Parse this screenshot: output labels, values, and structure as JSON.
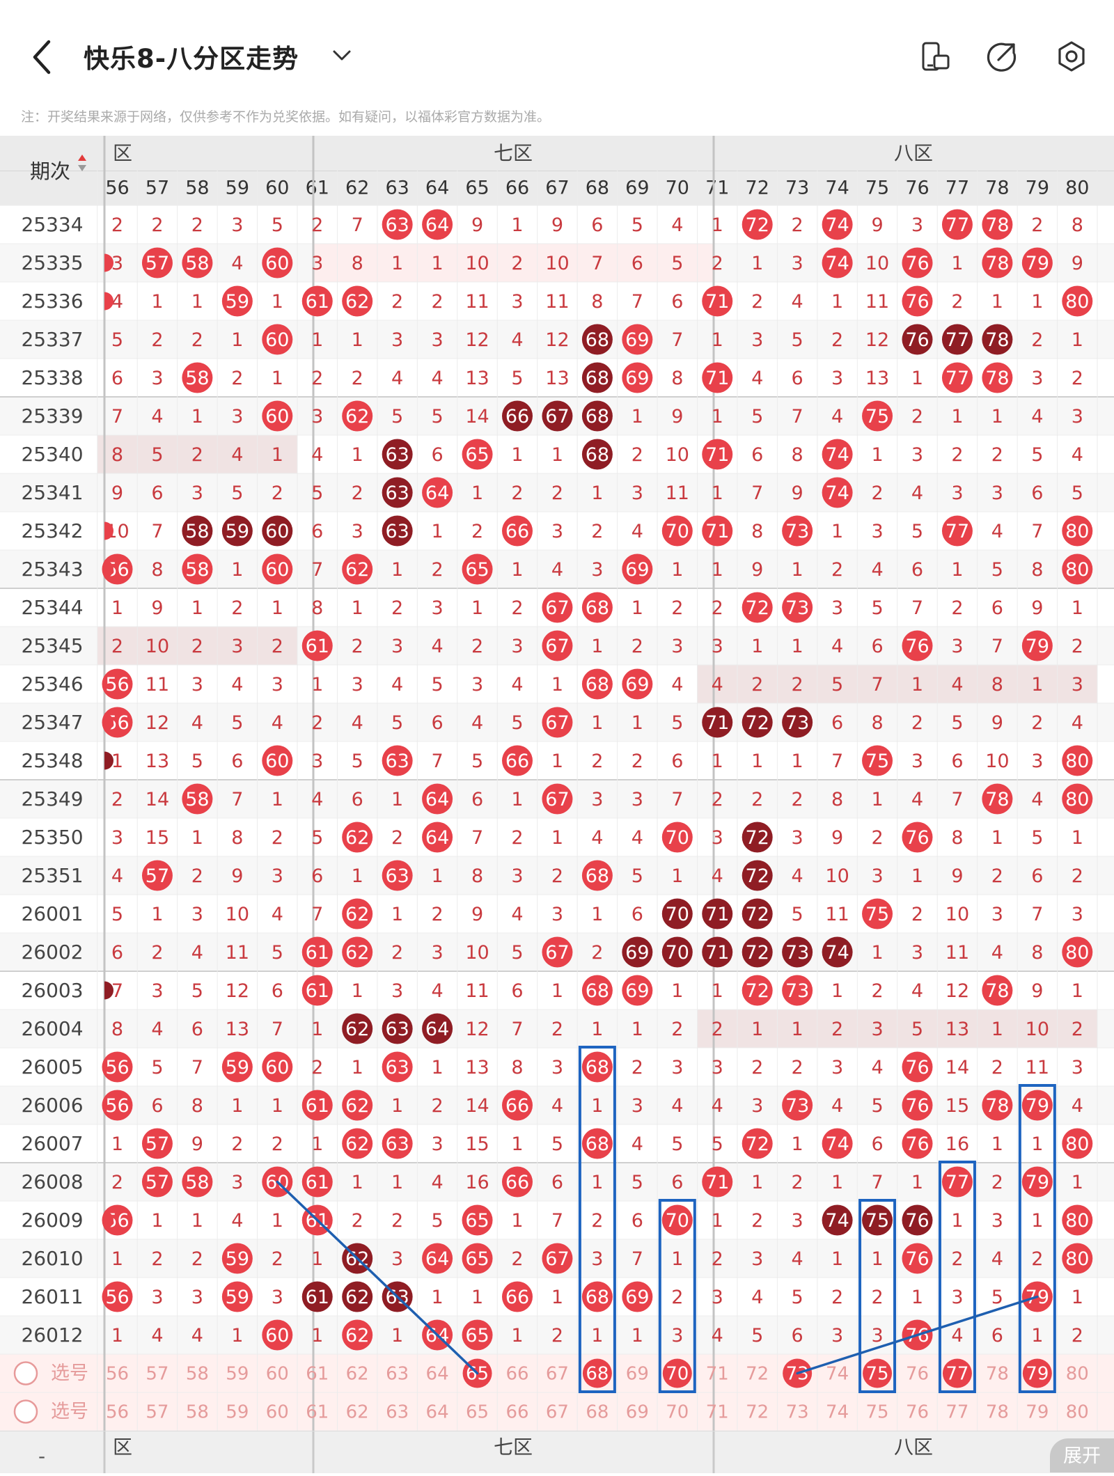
{
  "header": {
    "title": "快乐8-八分区走势",
    "icons": [
      "back-arrow-icon",
      "chevron-down-icon",
      "phone-rotate-icon",
      "share-icon",
      "settings-icon"
    ]
  },
  "notice": "注：开奖结果来源于网络，仅供参考不作为兑奖依据。如有疑问，以福体彩官方数据为准。",
  "table": {
    "period_header": "期次",
    "zones": [
      {
        "label": "六区",
        "visible_label": "区"
      },
      {
        "label": "七区"
      },
      {
        "label": "八区"
      }
    ],
    "columns": [
      "56",
      "57",
      "58",
      "59",
      "60",
      "61",
      "62",
      "63",
      "64",
      "65",
      "66",
      "67",
      "68",
      "69",
      "70",
      "71",
      "72",
      "73",
      "74",
      "75",
      "76",
      "77",
      "78",
      "79",
      "80"
    ],
    "rows": [
      {
        "period": "25334",
        "cells": [
          2,
          2,
          2,
          3,
          5,
          2,
          7,
          63,
          64,
          9,
          1,
          9,
          6,
          5,
          4,
          1,
          72,
          2,
          74,
          9,
          3,
          77,
          78,
          2,
          8
        ]
      },
      {
        "period": "25335",
        "cells": [
          3,
          57,
          58,
          4,
          60,
          3,
          8,
          1,
          1,
          10,
          2,
          10,
          7,
          6,
          5,
          2,
          1,
          3,
          74,
          10,
          76,
          1,
          78,
          79,
          9
        ]
      },
      {
        "period": "25336",
        "cells": [
          4,
          1,
          1,
          59,
          1,
          61,
          62,
          2,
          2,
          11,
          3,
          11,
          8,
          7,
          6,
          71,
          2,
          4,
          1,
          11,
          76,
          2,
          1,
          1,
          80
        ]
      },
      {
        "period": "25337",
        "cells": [
          5,
          2,
          2,
          1,
          60,
          1,
          1,
          3,
          3,
          12,
          4,
          12,
          68,
          69,
          7,
          1,
          3,
          5,
          2,
          12,
          76,
          77,
          78,
          2,
          1
        ]
      },
      {
        "period": "25338",
        "cells": [
          6,
          3,
          58,
          2,
          1,
          2,
          2,
          4,
          4,
          13,
          5,
          13,
          68,
          69,
          8,
          71,
          4,
          6,
          3,
          13,
          1,
          77,
          78,
          3,
          2
        ]
      },
      {
        "period": "25339",
        "cells": [
          7,
          4,
          1,
          3,
          60,
          3,
          62,
          5,
          5,
          14,
          66,
          67,
          68,
          1,
          9,
          1,
          5,
          7,
          4,
          75,
          2,
          1,
          1,
          4,
          3
        ]
      },
      {
        "period": "25340",
        "cells": [
          8,
          5,
          2,
          4,
          1,
          4,
          1,
          63,
          6,
          65,
          1,
          1,
          68,
          2,
          10,
          71,
          6,
          8,
          74,
          1,
          3,
          2,
          2,
          5,
          4
        ]
      },
      {
        "period": "25341",
        "cells": [
          9,
          6,
          3,
          5,
          2,
          5,
          2,
          63,
          64,
          1,
          2,
          2,
          1,
          3,
          11,
          1,
          7,
          9,
          74,
          2,
          4,
          3,
          3,
          6,
          5
        ]
      },
      {
        "period": "25342",
        "cells": [
          10,
          7,
          58,
          59,
          60,
          6,
          3,
          63,
          1,
          2,
          66,
          3,
          2,
          4,
          70,
          71,
          8,
          73,
          1,
          3,
          5,
          77,
          4,
          7,
          80
        ]
      },
      {
        "period": "25343",
        "cells": [
          56,
          8,
          58,
          1,
          60,
          7,
          62,
          1,
          2,
          65,
          1,
          4,
          3,
          69,
          1,
          1,
          9,
          1,
          2,
          4,
          6,
          1,
          5,
          8,
          80
        ]
      },
      {
        "period": "25344",
        "cells": [
          1,
          9,
          1,
          2,
          1,
          8,
          1,
          2,
          3,
          1,
          2,
          67,
          68,
          1,
          2,
          2,
          72,
          73,
          3,
          5,
          7,
          2,
          6,
          9,
          1
        ]
      },
      {
        "period": "25345",
        "cells": [
          2,
          10,
          2,
          3,
          2,
          61,
          2,
          3,
          4,
          2,
          3,
          67,
          1,
          2,
          3,
          3,
          1,
          1,
          4,
          6,
          76,
          3,
          7,
          79,
          2
        ]
      },
      {
        "period": "25346",
        "cells": [
          56,
          11,
          3,
          4,
          3,
          1,
          3,
          4,
          5,
          3,
          4,
          1,
          68,
          69,
          4,
          4,
          2,
          2,
          5,
          7,
          1,
          4,
          8,
          1,
          3
        ]
      },
      {
        "period": "25347",
        "cells": [
          56,
          12,
          4,
          5,
          4,
          2,
          4,
          5,
          6,
          4,
          5,
          67,
          1,
          1,
          5,
          71,
          72,
          73,
          6,
          8,
          2,
          5,
          9,
          2,
          4
        ]
      },
      {
        "period": "25348",
        "cells": [
          1,
          13,
          5,
          6,
          60,
          3,
          5,
          63,
          7,
          5,
          66,
          1,
          2,
          2,
          6,
          1,
          1,
          1,
          7,
          75,
          3,
          6,
          10,
          3,
          80
        ]
      },
      {
        "period": "25349",
        "cells": [
          2,
          14,
          58,
          7,
          1,
          4,
          6,
          1,
          64,
          6,
          1,
          67,
          3,
          3,
          7,
          2,
          2,
          2,
          8,
          1,
          4,
          7,
          78,
          4,
          80
        ]
      },
      {
        "period": "25350",
        "cells": [
          3,
          15,
          1,
          8,
          2,
          5,
          62,
          2,
          64,
          7,
          2,
          1,
          4,
          4,
          70,
          3,
          72,
          3,
          9,
          2,
          76,
          8,
          1,
          5,
          1
        ]
      },
      {
        "period": "25351",
        "cells": [
          4,
          57,
          2,
          9,
          3,
          6,
          1,
          63,
          1,
          8,
          3,
          2,
          68,
          5,
          1,
          4,
          72,
          4,
          10,
          3,
          1,
          9,
          2,
          6,
          2
        ]
      },
      {
        "period": "26001",
        "cells": [
          5,
          1,
          3,
          10,
          4,
          7,
          62,
          1,
          2,
          9,
          4,
          3,
          1,
          6,
          70,
          71,
          72,
          5,
          11,
          75,
          2,
          10,
          3,
          7,
          3
        ]
      },
      {
        "period": "26002",
        "cells": [
          6,
          2,
          4,
          11,
          5,
          61,
          62,
          2,
          3,
          10,
          5,
          67,
          2,
          69,
          70,
          71,
          72,
          73,
          74,
          1,
          3,
          11,
          4,
          8,
          80
        ]
      },
      {
        "period": "26003",
        "cells": [
          7,
          3,
          5,
          12,
          6,
          61,
          1,
          3,
          4,
          11,
          6,
          1,
          68,
          69,
          1,
          1,
          72,
          73,
          1,
          2,
          4,
          12,
          78,
          9,
          1
        ]
      },
      {
        "period": "26004",
        "cells": [
          8,
          4,
          6,
          13,
          7,
          1,
          62,
          63,
          64,
          12,
          7,
          2,
          1,
          1,
          2,
          2,
          1,
          1,
          2,
          3,
          5,
          13,
          1,
          10,
          2
        ]
      },
      {
        "period": "26005",
        "cells": [
          56,
          5,
          7,
          59,
          60,
          2,
          1,
          63,
          1,
          13,
          8,
          3,
          68,
          2,
          3,
          3,
          2,
          2,
          3,
          4,
          76,
          14,
          2,
          11,
          3
        ]
      },
      {
        "period": "26006",
        "cells": [
          56,
          6,
          8,
          1,
          1,
          61,
          62,
          1,
          2,
          14,
          66,
          4,
          1,
          3,
          4,
          4,
          3,
          73,
          4,
          5,
          76,
          15,
          78,
          79,
          4
        ]
      },
      {
        "period": "26007",
        "cells": [
          1,
          57,
          9,
          2,
          2,
          1,
          62,
          63,
          3,
          15,
          1,
          5,
          68,
          4,
          5,
          5,
          72,
          1,
          74,
          6,
          76,
          16,
          1,
          1,
          80
        ]
      },
      {
        "period": "26008",
        "cells": [
          2,
          57,
          58,
          3,
          60,
          61,
          1,
          1,
          4,
          16,
          66,
          6,
          1,
          5,
          6,
          71,
          1,
          2,
          1,
          7,
          1,
          77,
          2,
          79,
          1
        ]
      },
      {
        "period": "26009",
        "cells": [
          56,
          1,
          1,
          4,
          1,
          61,
          2,
          2,
          5,
          65,
          1,
          7,
          2,
          6,
          70,
          1,
          2,
          3,
          74,
          75,
          76,
          1,
          3,
          1,
          80
        ]
      },
      {
        "period": "26010",
        "cells": [
          1,
          2,
          2,
          59,
          2,
          1,
          62,
          3,
          64,
          65,
          2,
          67,
          3,
          7,
          1,
          2,
          3,
          4,
          1,
          1,
          76,
          2,
          4,
          2,
          80
        ]
      },
      {
        "period": "26011",
        "cells": [
          56,
          3,
          3,
          59,
          3,
          61,
          62,
          63,
          1,
          1,
          66,
          1,
          68,
          69,
          2,
          3,
          4,
          5,
          2,
          2,
          1,
          3,
          5,
          79,
          1
        ]
      },
      {
        "period": "26012",
        "cells": [
          1,
          4,
          4,
          1,
          60,
          1,
          62,
          1,
          64,
          65,
          1,
          2,
          1,
          1,
          3,
          4,
          5,
          6,
          3,
          3,
          76,
          4,
          6,
          1,
          2
        ]
      }
    ],
    "dark_balls": {
      "25337": [
        68,
        76,
        77,
        78
      ],
      "25338": [
        68
      ],
      "25339": [
        66,
        67,
        68
      ],
      "25340": [
        63,
        68
      ],
      "25341": [
        63
      ],
      "25342": [
        58,
        59,
        60,
        63
      ],
      "25347": [
        71,
        72,
        73
      ],
      "25350": [
        72
      ],
      "25351": [
        72
      ],
      "26001": [
        70,
        71,
        72
      ],
      "26002": [
        69,
        70,
        71,
        72,
        73,
        74
      ],
      "26004": [
        62,
        63,
        64
      ],
      "26009": [
        74,
        75,
        76
      ],
      "26010": [
        62
      ],
      "26011": [
        61,
        62,
        63
      ]
    },
    "left_clipped_balls": {
      "25335": "red",
      "25336": "red",
      "25342": "red",
      "25343": "red",
      "25347": "red",
      "25348": "dark",
      "26003": "dark",
      "26009": "red"
    },
    "selection_rows": [
      {
        "label": "选号",
        "selected": [
          65,
          68,
          70,
          73,
          75,
          77,
          79
        ]
      },
      {
        "label": "选号",
        "selected": []
      }
    ],
    "highlight_boxes": [
      {
        "column": 68,
        "from_period": "26005",
        "to_selection": true
      },
      {
        "column": 70,
        "from_period": "26009",
        "to_selection": true
      },
      {
        "column": 75,
        "from_period": "26009",
        "to_selection": true
      },
      {
        "column": 77,
        "from_period": "26008",
        "to_selection": true
      },
      {
        "column": 79,
        "from_period": "26006",
        "to_selection": true
      }
    ],
    "trend_lines": [
      {
        "from": {
          "period": "26008",
          "column": 60
        },
        "to": {
          "selection": 0,
          "column": 65
        }
      },
      {
        "from": {
          "selection": 0,
          "column": 73
        },
        "to": {
          "period": "26011",
          "column": 79
        }
      }
    ]
  },
  "bottom_bar": {
    "zones": [
      {
        "label": "六区",
        "visible_label": "区"
      },
      {
        "label": "七区"
      },
      {
        "label": "八区"
      }
    ],
    "expand_label": "展开",
    "left_mark": "-"
  },
  "colors": {
    "ball_red": "#e8414a",
    "ball_dark": "#8f1d24",
    "number_text": "#c93a3f",
    "header_bg": "#ebebeb",
    "highlight_box": "#1e64c0",
    "trend_line": "#1e5fb0",
    "selection_bg": "#fff0ef",
    "selection_text": "#e59b9b"
  }
}
